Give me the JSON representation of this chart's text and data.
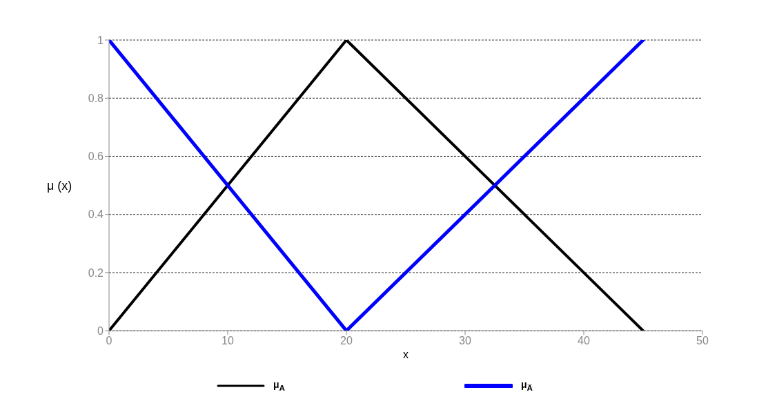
{
  "chart_data": {
    "type": "line",
    "xlabel": "x",
    "ylabel": "μ (x)",
    "xlim": [
      0,
      50
    ],
    "xticks": [
      0,
      10,
      20,
      30,
      40,
      50
    ],
    "ylim": [
      0,
      1
    ],
    "yticks": [
      0,
      0.2,
      0.4,
      0.6,
      0.8,
      1
    ],
    "grid": "y",
    "legend": "bottom",
    "marker": "none",
    "line_style": "solid",
    "series": [
      {
        "name": "μ$_{A}$",
        "color": "#000000",
        "x": [
          0,
          20,
          45
        ],
        "values": [
          0,
          1,
          0
        ]
      },
      {
        "name": "μ$_{A̅}$",
        "color": "#0000ff",
        "x": [
          0,
          20,
          45
        ],
        "values": [
          1,
          0,
          1
        ]
      }
    ]
  }
}
